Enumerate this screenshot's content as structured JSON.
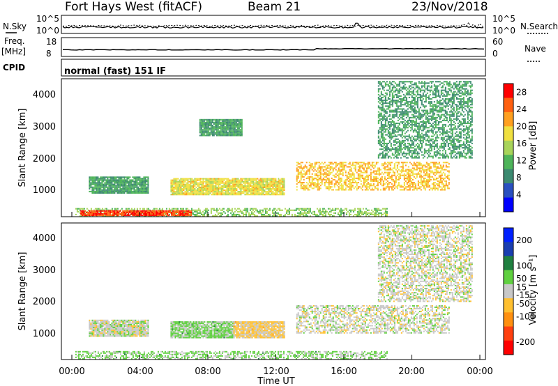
{
  "header": {
    "station": "Fort Hays West (fitACF)",
    "beam": "Beam 21",
    "date": "23/Nov/2018"
  },
  "noise_panel": {
    "left_label": "N.Sky",
    "right_label": "N.Search",
    "left_ticks": [
      "10^5",
      "10^0"
    ],
    "right_ticks": [
      "10^5",
      "10^0"
    ]
  },
  "freq_panel": {
    "left_label_line1": "Freq.",
    "left_label_line2": "[MHz]",
    "right_label": "Nave",
    "left_ticks": [
      "18",
      "8"
    ],
    "right_ticks": [
      "60",
      "0"
    ]
  },
  "cpid": {
    "label": "CPID",
    "mode": "normal (fast) 151 IF"
  },
  "axes": {
    "ylabel": "Slant Range [km]",
    "xlabel": "Time UT",
    "yticks": [
      "4000",
      "3000",
      "2000",
      "1000"
    ],
    "xticks": [
      "00:00",
      "04:00",
      "08:00",
      "12:00",
      "16:00",
      "20:00",
      "00:00"
    ]
  },
  "chart_data": [
    {
      "type": "heatmap",
      "name_printed": "Power [dB]",
      "x_range": [
        "00:00",
        "24:00"
      ],
      "y_range_km": [
        180,
        4500
      ],
      "colorbar": {
        "label": "Power [dB]",
        "tick_labels": [
          "28",
          "24",
          "20",
          "16",
          "12",
          "8",
          "4"
        ],
        "ticks": [
          28,
          24,
          20,
          16,
          12,
          8,
          4
        ],
        "range": [
          0,
          30
        ],
        "colors": [
          "#0000ff",
          "#2a50c0",
          "#3c8a70",
          "#4eb45a",
          "#a8d45a",
          "#f0e040",
          "#ffa020",
          "#ff6010",
          "#ff0000"
        ]
      },
      "features": [
        {
          "time_start": 0.2,
          "time_end": 18.5,
          "range_min": 180,
          "range_max": 450,
          "value": 14,
          "desc": "ground scatter band"
        },
        {
          "time_start": 0.5,
          "time_end": 7.0,
          "range_min": 200,
          "range_max": 380,
          "value": 26,
          "desc": "strong near-range"
        },
        {
          "time_start": 1.0,
          "time_end": 4.5,
          "range_min": 900,
          "range_max": 1400,
          "value": 10,
          "desc": "early echo patch"
        },
        {
          "time_start": 5.8,
          "time_end": 12.5,
          "range_min": 850,
          "range_max": 1350,
          "value": 18,
          "desc": "arc echo"
        },
        {
          "time_start": 13.2,
          "time_end": 22.2,
          "range_min": 1000,
          "range_max": 1900,
          "value": 20,
          "desc": "broad evening echo"
        },
        {
          "time_start": 7.5,
          "time_end": 10.0,
          "range_min": 2700,
          "range_max": 3200,
          "value": 10,
          "desc": "sparse far echo"
        },
        {
          "time_start": 18.0,
          "time_end": 23.5,
          "range_min": 2000,
          "range_max": 4400,
          "value": 10,
          "desc": "sparse far echo"
        }
      ]
    },
    {
      "type": "heatmap",
      "name_printed": "Velocity [m s^-1]",
      "x_range": [
        "00:00",
        "24:00"
      ],
      "y_range_km": [
        180,
        4500
      ],
      "colorbar": {
        "label": "Velocity [m s⁻¹]",
        "tick_labels": [
          "200",
          "100",
          "50",
          "15",
          "-15",
          "-50",
          "-100",
          "-200"
        ],
        "ticks": [
          200,
          100,
          50,
          15,
          -15,
          -50,
          -100,
          -200
        ],
        "range": [
          -250,
          250
        ],
        "colors": [
          "#ff0000",
          "#ff4010",
          "#ff9010",
          "#ffc030",
          "#c8c8c8",
          "#60d040",
          "#208040",
          "#1a3eb0",
          "#0020ff"
        ]
      },
      "features": [
        {
          "time_start": 0.2,
          "time_end": 18.5,
          "range_min": 180,
          "range_max": 450,
          "value": 40,
          "desc": "ground scatter band"
        },
        {
          "time_start": 1.0,
          "time_end": 4.5,
          "range_min": 900,
          "range_max": 1400,
          "value": 0,
          "desc": "early echo patch"
        },
        {
          "time_start": 5.8,
          "time_end": 9.5,
          "range_min": 850,
          "range_max": 1350,
          "value": 40,
          "desc": "arc echo (west)"
        },
        {
          "time_start": 9.5,
          "time_end": 12.5,
          "range_min": 850,
          "range_max": 1350,
          "value": -40,
          "desc": "arc echo (east)"
        },
        {
          "time_start": 13.2,
          "time_end": 22.2,
          "range_min": 1000,
          "range_max": 1900,
          "value": 0,
          "desc": "broad evening echo"
        },
        {
          "time_start": 18.0,
          "time_end": 23.5,
          "range_min": 2000,
          "range_max": 4400,
          "value": 0,
          "desc": "sparse far echo"
        }
      ]
    }
  ]
}
